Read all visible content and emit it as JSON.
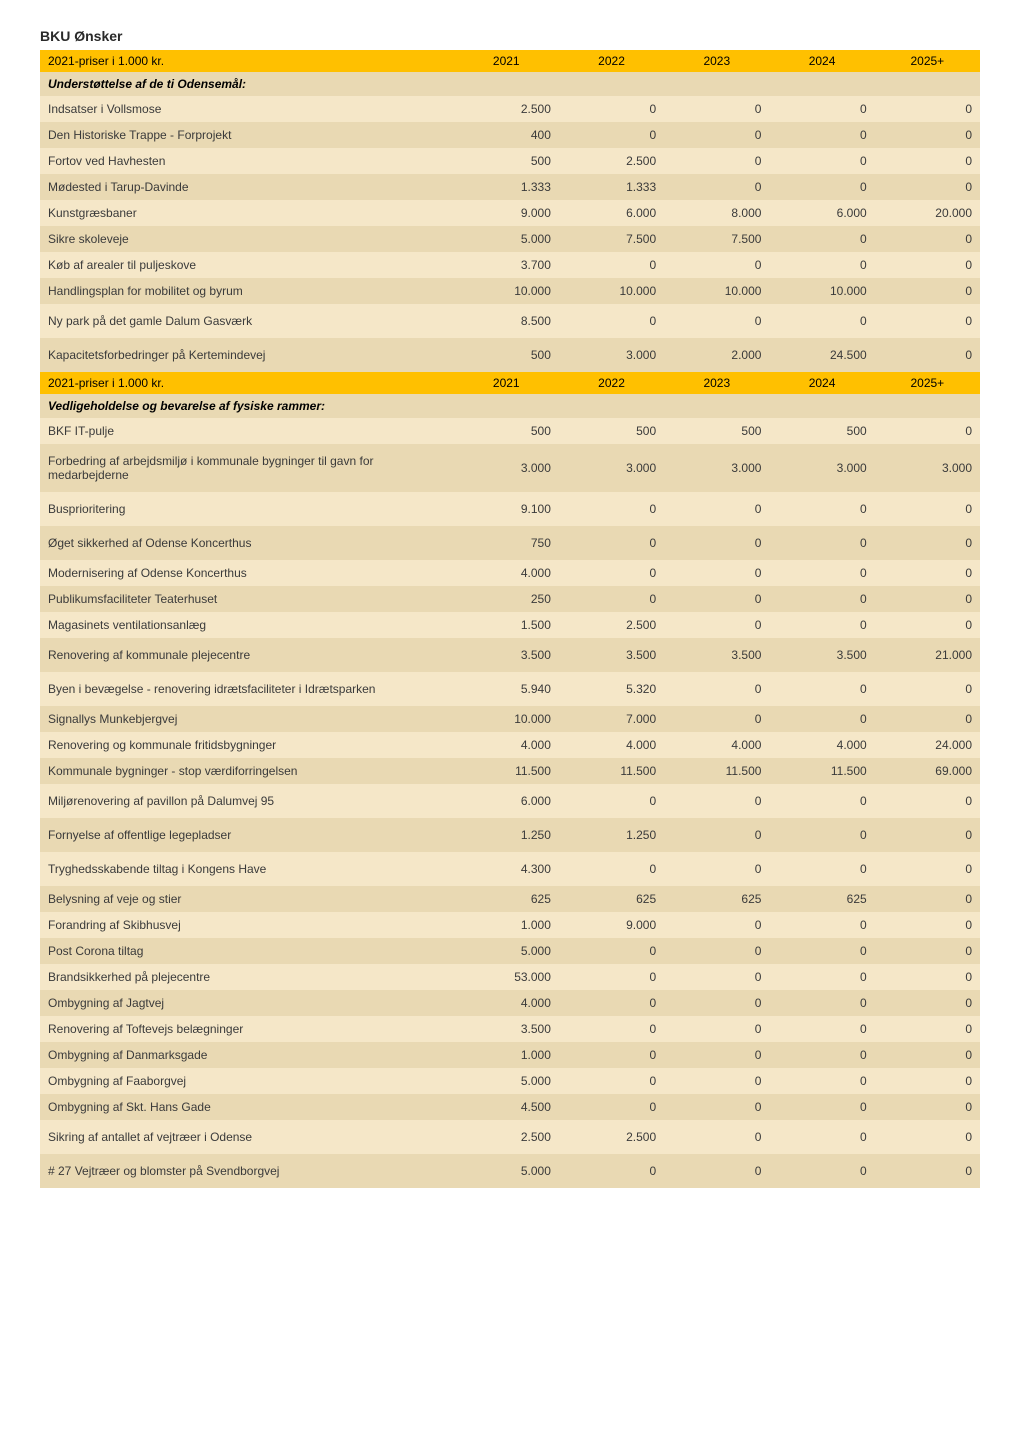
{
  "title": "BKU Ønsker",
  "colors": {
    "header_bg": "#ffc000",
    "row_even": "#f5e7c8",
    "row_odd": "#e9d9b3",
    "section_bg": "#e9d9b3",
    "text": "#3a3a3a"
  },
  "type": "table",
  "columns_header": {
    "label": "2021-priser i 1.000 kr.",
    "years": [
      "2021",
      "2022",
      "2023",
      "2024",
      "2025+"
    ]
  },
  "sections": [
    {
      "title": "Understøttelse af de ti Odensemål:",
      "rows": [
        {
          "label": "Indsatser i Vollsmose",
          "values": [
            "2.500",
            "0",
            "0",
            "0",
            "0"
          ]
        },
        {
          "label": "Den Historiske Trappe - Forprojekt",
          "values": [
            "400",
            "0",
            "0",
            "0",
            "0"
          ]
        },
        {
          "label": "Fortov ved Havhesten",
          "values": [
            "500",
            "2.500",
            "0",
            "0",
            "0"
          ]
        },
        {
          "label": "Mødested i Tarup-Davinde",
          "values": [
            "1.333",
            "1.333",
            "0",
            "0",
            "0"
          ]
        },
        {
          "label": "Kunstgræsbaner",
          "values": [
            "9.000",
            "6.000",
            "8.000",
            "6.000",
            "20.000"
          ]
        },
        {
          "label": "Sikre skoleveje",
          "values": [
            "5.000",
            "7.500",
            "7.500",
            "0",
            "0"
          ]
        },
        {
          "label": "Køb af arealer til puljeskove",
          "values": [
            "3.700",
            "0",
            "0",
            "0",
            "0"
          ]
        },
        {
          "label": "Handlingsplan for mobilitet og byrum",
          "values": [
            "10.000",
            "10.000",
            "10.000",
            "10.000",
            "0"
          ]
        },
        {
          "label": "Ny park på det gamle Dalum Gasværk",
          "values": [
            "8.500",
            "0",
            "0",
            "0",
            "0"
          ],
          "tall": true
        },
        {
          "label": "Kapacitetsforbedringer på Kertemindevej",
          "values": [
            "500",
            "3.000",
            "2.000",
            "24.500",
            "0"
          ],
          "tall": true
        }
      ]
    },
    {
      "repeat_header": true,
      "title": "Vedligeholdelse og bevarelse af fysiske rammer:",
      "rows": [
        {
          "label": "BKF IT-pulje",
          "values": [
            "500",
            "500",
            "500",
            "500",
            "0"
          ]
        },
        {
          "label": "Forbedring af arbejdsmiljø i kommunale bygninger til gavn for medarbejderne",
          "values": [
            "3.000",
            "3.000",
            "3.000",
            "3.000",
            "3.000"
          ],
          "tall": true
        },
        {
          "label": "Busprioritering",
          "values": [
            "9.100",
            "0",
            "0",
            "0",
            "0"
          ],
          "tall": true
        },
        {
          "label": "Øget sikkerhed af Odense Koncerthus",
          "values": [
            "750",
            "0",
            "0",
            "0",
            "0"
          ],
          "tall": true
        },
        {
          "label": "Modernisering af Odense Koncerthus",
          "values": [
            "4.000",
            "0",
            "0",
            "0",
            "0"
          ]
        },
        {
          "label": "Publikumsfaciliteter Teaterhuset",
          "values": [
            "250",
            "0",
            "0",
            "0",
            "0"
          ]
        },
        {
          "label": "Magasinets ventilationsanlæg",
          "values": [
            "1.500",
            "2.500",
            "0",
            "0",
            "0"
          ]
        },
        {
          "label": "Renovering af kommunale plejecentre",
          "values": [
            "3.500",
            "3.500",
            "3.500",
            "3.500",
            "21.000"
          ],
          "tall": true
        },
        {
          "label": "Byen i bevægelse - renovering idrætsfaciliteter i Idrætsparken",
          "values": [
            "5.940",
            "5.320",
            "0",
            "0",
            "0"
          ],
          "tall": true
        },
        {
          "label": "Signallys Munkebjergvej",
          "values": [
            "10.000",
            "7.000",
            "0",
            "0",
            "0"
          ]
        },
        {
          "label": "Renovering og kommunale fritidsbygninger",
          "values": [
            "4.000",
            "4.000",
            "4.000",
            "4.000",
            "24.000"
          ]
        },
        {
          "label": "Kommunale bygninger - stop værdiforringelsen",
          "values": [
            "11.500",
            "11.500",
            "11.500",
            "11.500",
            "69.000"
          ]
        },
        {
          "label": "Miljørenovering af pavillon på Dalumvej 95",
          "values": [
            "6.000",
            "0",
            "0",
            "0",
            "0"
          ],
          "tall": true
        },
        {
          "label": "Fornyelse af offentlige legepladser",
          "values": [
            "1.250",
            "1.250",
            "0",
            "0",
            "0"
          ],
          "tall": true
        },
        {
          "label": "Tryghedsskabende tiltag i Kongens Have",
          "values": [
            "4.300",
            "0",
            "0",
            "0",
            "0"
          ],
          "tall": true
        },
        {
          "label": "Belysning af veje og stier",
          "values": [
            "625",
            "625",
            "625",
            "625",
            "0"
          ]
        },
        {
          "label": "Forandring af Skibhusvej",
          "values": [
            "1.000",
            "9.000",
            "0",
            "0",
            "0"
          ]
        },
        {
          "label": "Post Corona tiltag",
          "values": [
            "5.000",
            "0",
            "0",
            "0",
            "0"
          ]
        },
        {
          "label": "Brandsikkerhed på plejecentre",
          "values": [
            "53.000",
            "0",
            "0",
            "0",
            "0"
          ]
        },
        {
          "label": "Ombygning af Jagtvej",
          "values": [
            "4.000",
            "0",
            "0",
            "0",
            "0"
          ]
        },
        {
          "label": "Renovering af Toftevejs belægninger",
          "values": [
            "3.500",
            "0",
            "0",
            "0",
            "0"
          ]
        },
        {
          "label": "Ombygning af Danmarksgade",
          "values": [
            "1.000",
            "0",
            "0",
            "0",
            "0"
          ]
        },
        {
          "label": "Ombygning af Faaborgvej",
          "values": [
            "5.000",
            "0",
            "0",
            "0",
            "0"
          ]
        },
        {
          "label": "Ombygning af Skt. Hans Gade",
          "values": [
            "4.500",
            "0",
            "0",
            "0",
            "0"
          ]
        },
        {
          "label": "Sikring af antallet af vejtræer i Odense",
          "values": [
            "2.500",
            "2.500",
            "0",
            "0",
            "0"
          ],
          "tall": true
        },
        {
          "label": "# 27 Vejtræer og blomster på Svendborgvej",
          "values": [
            "5.000",
            "0",
            "0",
            "0",
            "0"
          ],
          "tall": true
        }
      ]
    }
  ]
}
